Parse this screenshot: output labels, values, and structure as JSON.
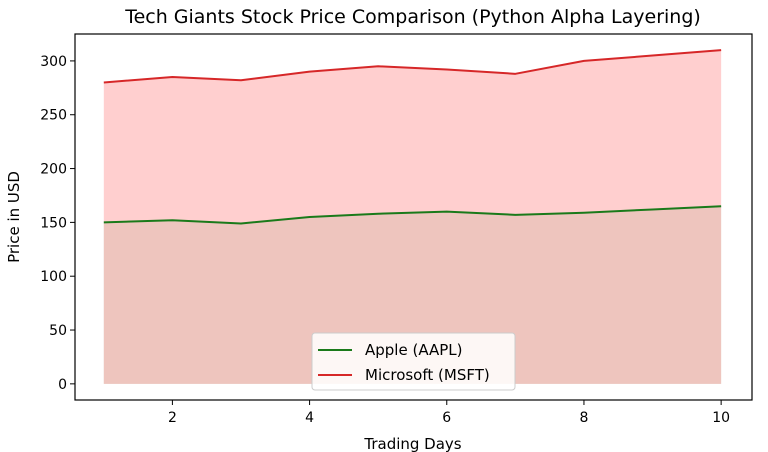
{
  "chart_data": {
    "type": "area",
    "title": "Tech Giants Stock Price Comparison (Python Alpha Layering)",
    "xlabel": "Trading Days",
    "ylabel": "Price in USD",
    "x": [
      1,
      2,
      3,
      4,
      5,
      6,
      7,
      8,
      9,
      10
    ],
    "xlim": [
      0.58,
      10.45
    ],
    "ylim": [
      -15,
      325
    ],
    "xticks": [
      2,
      4,
      6,
      8,
      10
    ],
    "yticks": [
      0,
      50,
      100,
      150,
      200,
      250,
      300
    ],
    "grid": false,
    "legend_position": "bottom-center",
    "series": [
      {
        "name": "Apple (AAPL)",
        "values": [
          150,
          152,
          149,
          155,
          158,
          160,
          157,
          159,
          162,
          165
        ],
        "line_color": "#1a7a1a",
        "fill_color": "#8fba8f",
        "fill_alpha": 0.3
      },
      {
        "name": "Microsoft (MSFT)",
        "values": [
          280,
          285,
          282,
          290,
          295,
          292,
          288,
          300,
          305,
          310
        ],
        "line_color": "#d62728",
        "fill_color": "#ff9f9f",
        "fill_alpha": 0.5
      }
    ]
  }
}
